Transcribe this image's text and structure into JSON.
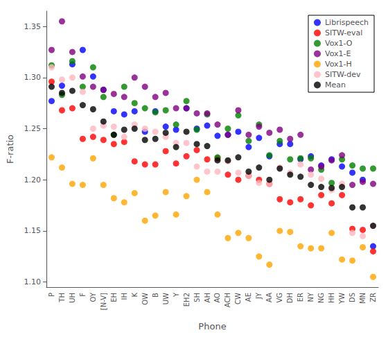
{
  "chart_data": {
    "type": "scatter",
    "xlabel": "Phone",
    "ylabel": "F-ratio",
    "categories": [
      "P",
      "TH",
      "UH",
      "F",
      "OY",
      "[N-V]",
      "EH",
      "IH",
      "K",
      "OW",
      "B",
      "UW",
      "Y",
      "EH2",
      "SH",
      "AH",
      "AO",
      "ACH",
      "CW",
      "AE",
      "JY",
      "AA",
      "VG",
      "DH",
      "ER",
      "NY",
      "NG",
      "HH",
      "YW",
      "DS",
      "MN",
      "ZR"
    ],
    "series": [
      {
        "name": "Librispeech",
        "color": "#0000FF",
        "values": [
          1.277,
          1.292,
          1.313,
          1.327,
          1.301,
          1.288,
          1.267,
          1.264,
          1.267,
          1.247,
          1.267,
          1.252,
          1.249,
          1.27,
          1.25,
          1.253,
          1.243,
          1.244,
          1.247,
          1.232,
          1.241,
          1.223,
          1.235,
          1.235,
          1.22,
          1.223,
          1.214,
          1.22,
          1.213,
          1.207,
          1.2,
          1.135
        ]
      },
      {
        "name": "SITW-eval",
        "color": "#FF0000",
        "values": [
          1.296,
          1.268,
          1.27,
          1.24,
          1.242,
          1.239,
          1.235,
          1.237,
          1.218,
          1.215,
          1.215,
          1.228,
          1.216,
          1.223,
          1.229,
          1.22,
          1.221,
          1.205,
          1.2,
          1.204,
          1.2,
          1.196,
          1.181,
          1.178,
          1.181,
          1.175,
          1.185,
          1.177,
          1.185,
          1.152,
          1.151,
          1.13
        ]
      },
      {
        "name": "Vox1-O",
        "color": "#008000",
        "values": [
          1.312,
          1.283,
          1.316,
          1.291,
          1.31,
          1.281,
          1.244,
          1.291,
          1.275,
          1.27,
          1.266,
          1.268,
          1.254,
          1.277,
          1.249,
          1.264,
          1.222,
          1.25,
          1.263,
          1.238,
          1.254,
          1.224,
          1.238,
          1.22,
          1.221,
          1.221,
          1.21,
          1.197,
          1.22,
          1.214,
          1.211,
          1.211
        ]
      },
      {
        "name": "Vox1-E",
        "color": "#800080",
        "values": [
          1.327,
          1.355,
          1.325,
          1.301,
          1.291,
          1.288,
          1.284,
          1.281,
          1.3,
          1.291,
          1.281,
          1.285,
          1.27,
          1.27,
          1.265,
          1.265,
          1.254,
          1.244,
          1.268,
          1.244,
          1.252,
          1.246,
          1.249,
          1.24,
          1.244,
          1.21,
          1.213,
          1.219,
          1.224,
          1.195,
          1.198,
          1.196
        ]
      },
      {
        "name": "Vox1-H",
        "color": "#FFA500",
        "values": [
          1.222,
          1.212,
          1.196,
          1.195,
          1.221,
          1.195,
          1.182,
          1.178,
          1.187,
          1.16,
          1.165,
          1.188,
          1.166,
          1.184,
          1.2,
          1.188,
          1.166,
          1.143,
          1.148,
          1.143,
          1.125,
          1.117,
          1.15,
          1.149,
          1.135,
          1.133,
          1.133,
          1.148,
          1.122,
          1.121,
          1.134,
          1.105
        ]
      },
      {
        "name": "SITW-dev",
        "color": "#FFB6C1",
        "values": [
          1.31,
          1.298,
          1.3,
          1.286,
          1.25,
          1.253,
          1.252,
          1.242,
          1.254,
          1.25,
          1.247,
          1.242,
          1.236,
          1.236,
          1.213,
          1.208,
          1.208,
          1.218,
          1.207,
          1.204,
          1.197,
          1.196,
          1.212,
          1.207,
          1.215,
          1.205,
          1.201,
          1.19,
          1.196,
          1.148,
          1.145,
          1.155
        ]
      },
      {
        "name": "Mean",
        "color": "#000000",
        "values": [
          1.291,
          1.285,
          1.287,
          1.273,
          1.269,
          1.257,
          1.244,
          1.249,
          1.25,
          1.239,
          1.24,
          1.246,
          1.232,
          1.247,
          1.235,
          1.233,
          1.219,
          1.219,
          1.222,
          1.208,
          1.212,
          1.2,
          1.211,
          1.205,
          1.203,
          1.195,
          1.193,
          1.192,
          1.193,
          1.173,
          1.173,
          1.155
        ]
      }
    ],
    "ylim": [
      1.095,
      1.365
    ],
    "yticks": [
      {
        "value": 1.1,
        "label": "1.10"
      },
      1.15,
      {
        "value": 1.2,
        "label": "1.20"
      },
      1.25,
      {
        "value": 1.3,
        "label": "1.30"
      },
      1.35
    ],
    "marker": "circle",
    "legend": "upper right",
    "grid": false
  }
}
